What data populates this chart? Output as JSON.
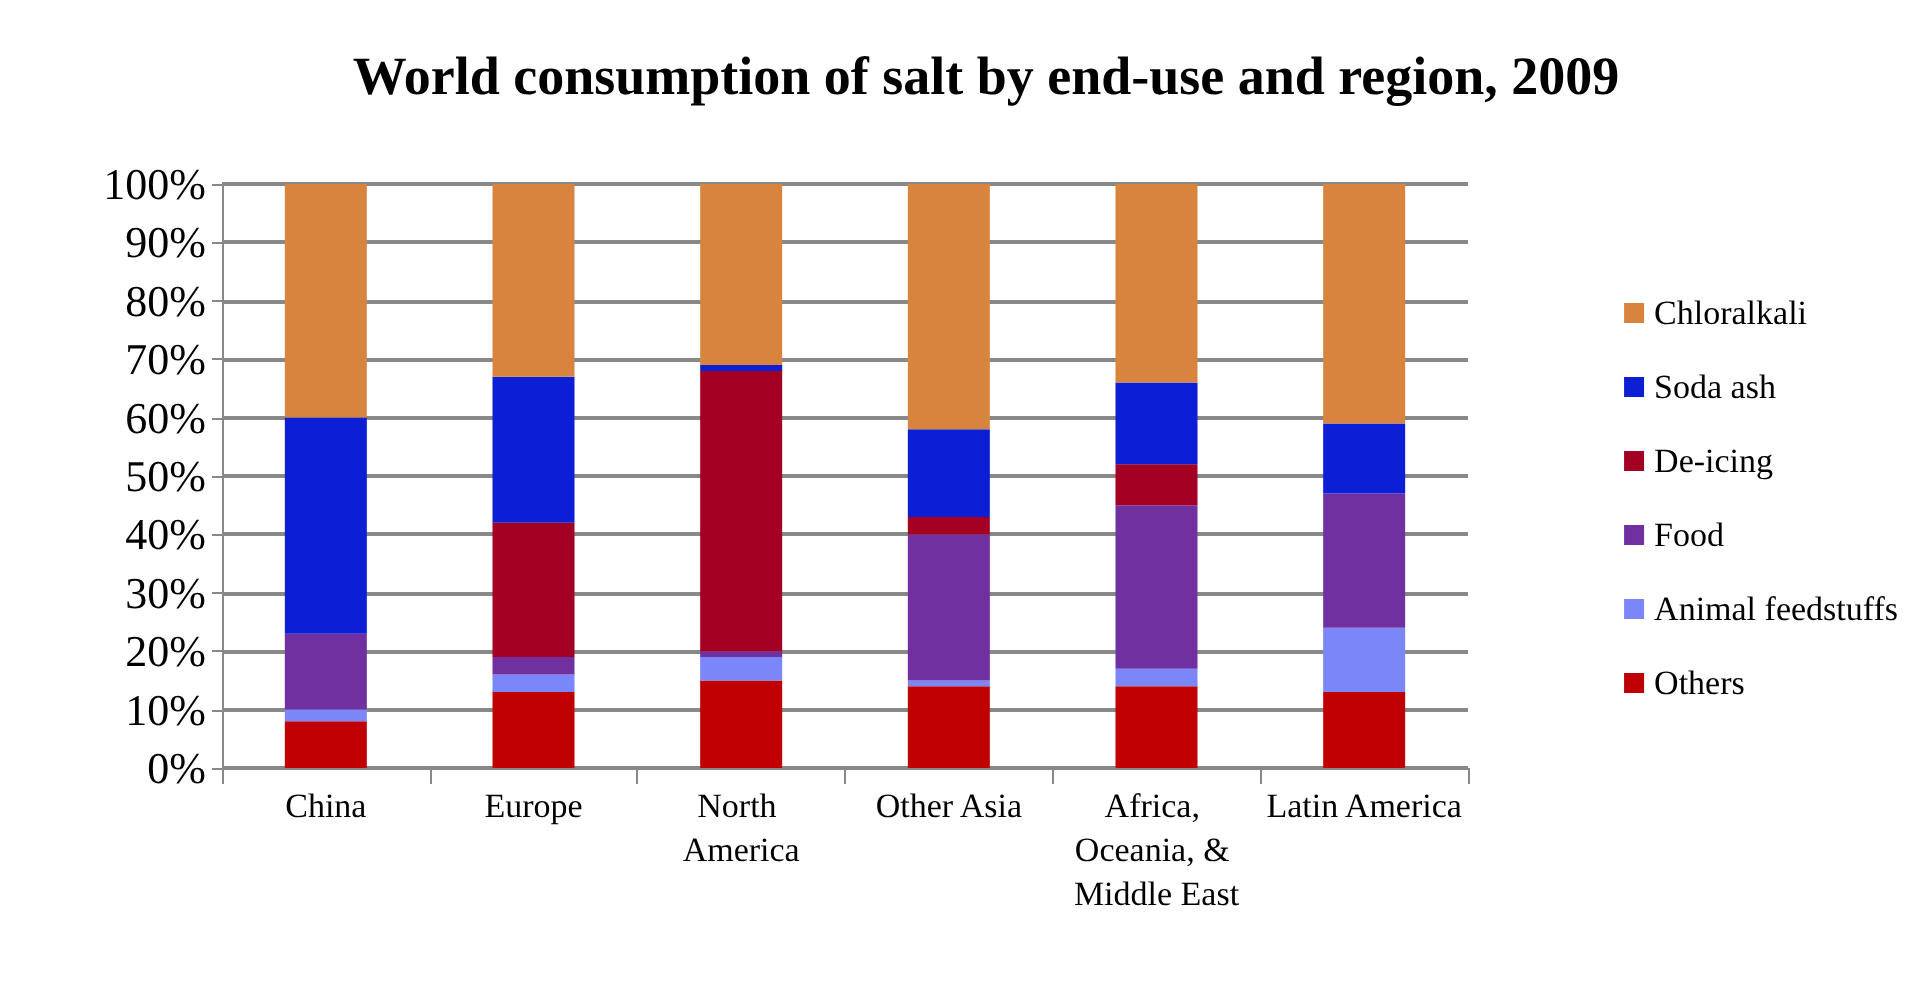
{
  "chart_data": {
    "type": "bar",
    "title": "World consumption of salt by end-use and region, 2009",
    "stacked": true,
    "categories": [
      "China",
      "Europe",
      "North America",
      "Other Asia",
      "Africa, Oceania, & Middle East",
      "Latin America"
    ],
    "series": [
      {
        "name": "Others",
        "color": "#c00000",
        "values": [
          8,
          13,
          15,
          14,
          14,
          13
        ]
      },
      {
        "name": "Animal feedstuffs",
        "color": "#7b86f8",
        "values": [
          2,
          3,
          4,
          1,
          3,
          11
        ]
      },
      {
        "name": "Food",
        "color": "#7030a0",
        "values": [
          13,
          3,
          1,
          25,
          28,
          23
        ]
      },
      {
        "name": "De-icing",
        "color": "#a30023",
        "values": [
          0,
          23,
          48,
          3,
          7,
          0
        ]
      },
      {
        "name": "Soda ash",
        "color": "#0c1fd4",
        "values": [
          37,
          25,
          1,
          15,
          14,
          12
        ]
      },
      {
        "name": "Chloralkali",
        "color": "#d9843e",
        "values": [
          40,
          33,
          31,
          42,
          34,
          41
        ]
      }
    ],
    "ylim": [
      0,
      100
    ],
    "yticks": [
      {
        "value": 0,
        "label": "0%"
      },
      {
        "value": 10,
        "label": "10%"
      },
      {
        "value": 20,
        "label": "20%"
      },
      {
        "value": 30,
        "label": "30%"
      },
      {
        "value": 40,
        "label": "40%"
      },
      {
        "value": 50,
        "label": "50%"
      },
      {
        "value": 60,
        "label": "60%"
      },
      {
        "value": 70,
        "label": "70%"
      },
      {
        "value": 80,
        "label": "80%"
      },
      {
        "value": 90,
        "label": "90%"
      },
      {
        "value": 100,
        "label": "100%"
      }
    ],
    "grid": "y",
    "legend": "right"
  }
}
